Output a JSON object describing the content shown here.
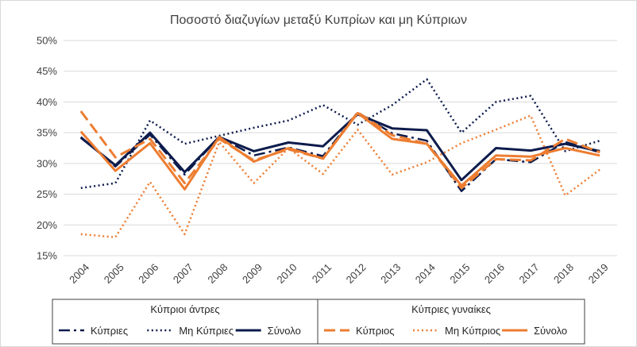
{
  "chart_data": {
    "type": "line",
    "title": "Ποσοστό διαζυγίων μεταξύ Κυπρίων και μη Κύπριων",
    "xlabel": "",
    "ylabel": "",
    "ylim": [
      0.15,
      0.5
    ],
    "yticks": [
      "15%",
      "20%",
      "25%",
      "30%",
      "35%",
      "40%",
      "45%",
      "50%"
    ],
    "ytick_values": [
      0.15,
      0.2,
      0.25,
      0.3,
      0.35,
      0.4,
      0.45,
      0.5
    ],
    "categories": [
      "2004",
      "2005",
      "2006",
      "2007",
      "2008",
      "2009",
      "2010",
      "2011",
      "2012",
      "2013",
      "2014",
      "2015",
      "2016",
      "2017",
      "2018",
      "2019"
    ],
    "grid": true,
    "legend_position": "bottom",
    "series": [
      {
        "name": "Κύπριες",
        "group": "Κύπριοι άντρες",
        "color": "#0D1B4C",
        "dash": "long-dash-dot",
        "width": 2.5,
        "values": [
          0.343,
          0.295,
          0.347,
          0.282,
          0.343,
          0.313,
          0.326,
          0.312,
          0.383,
          0.349,
          0.337,
          0.255,
          0.307,
          0.302,
          0.335,
          0.318
        ]
      },
      {
        "name": "Μη Κύπριες",
        "group": "Κύπριοι άντρες",
        "color": "#0D1B4C",
        "dash": "dotted",
        "width": 2.5,
        "values": [
          0.26,
          0.268,
          0.37,
          0.332,
          0.345,
          0.358,
          0.37,
          0.395,
          0.363,
          0.395,
          0.437,
          0.35,
          0.4,
          0.41,
          0.32,
          0.337
        ]
      },
      {
        "name": "Σύνολο",
        "group": "Κύπριοι άντρες",
        "color": "#0D1B4C",
        "dash": "solid",
        "width": 3,
        "values": [
          0.342,
          0.297,
          0.35,
          0.286,
          0.343,
          0.32,
          0.334,
          0.328,
          0.38,
          0.357,
          0.354,
          0.273,
          0.325,
          0.321,
          0.332,
          0.32
        ]
      },
      {
        "name": "Κύπριος",
        "group": "Κύπριες γυναίκες",
        "color": "#ED7D31",
        "dash": "long-dash",
        "width": 3,
        "values": [
          0.385,
          0.31,
          0.34,
          0.268,
          0.34,
          0.305,
          0.323,
          0.308,
          0.383,
          0.346,
          0.332,
          0.26,
          0.307,
          0.305,
          0.34,
          0.318
        ]
      },
      {
        "name": "Μη Κύπριος",
        "group": "Κύπριες γυναίκες",
        "color": "#ED7D31",
        "dash": "dotted",
        "width": 2.5,
        "values": [
          0.185,
          0.18,
          0.27,
          0.185,
          0.335,
          0.268,
          0.325,
          0.283,
          0.355,
          0.282,
          0.302,
          0.333,
          0.355,
          0.378,
          0.248,
          0.29
        ]
      },
      {
        "name": "Σύνολο",
        "group": "Κύπριες γυναίκες",
        "color": "#ED7D31",
        "dash": "solid",
        "width": 3,
        "values": [
          0.352,
          0.288,
          0.333,
          0.258,
          0.343,
          0.303,
          0.325,
          0.308,
          0.382,
          0.34,
          0.332,
          0.264,
          0.313,
          0.311,
          0.325,
          0.313
        ]
      }
    ],
    "legend": {
      "groups": [
        {
          "title": "Κύπριοι άντρες",
          "items": [
            "Κύπριες",
            "Μη Κύπριες",
            "Σύνολο"
          ]
        },
        {
          "title": "Κύπριες γυναίκες",
          "items": [
            "Κύπριος",
            "Μη Κύπριος",
            "Σύνολο"
          ]
        }
      ]
    }
  }
}
